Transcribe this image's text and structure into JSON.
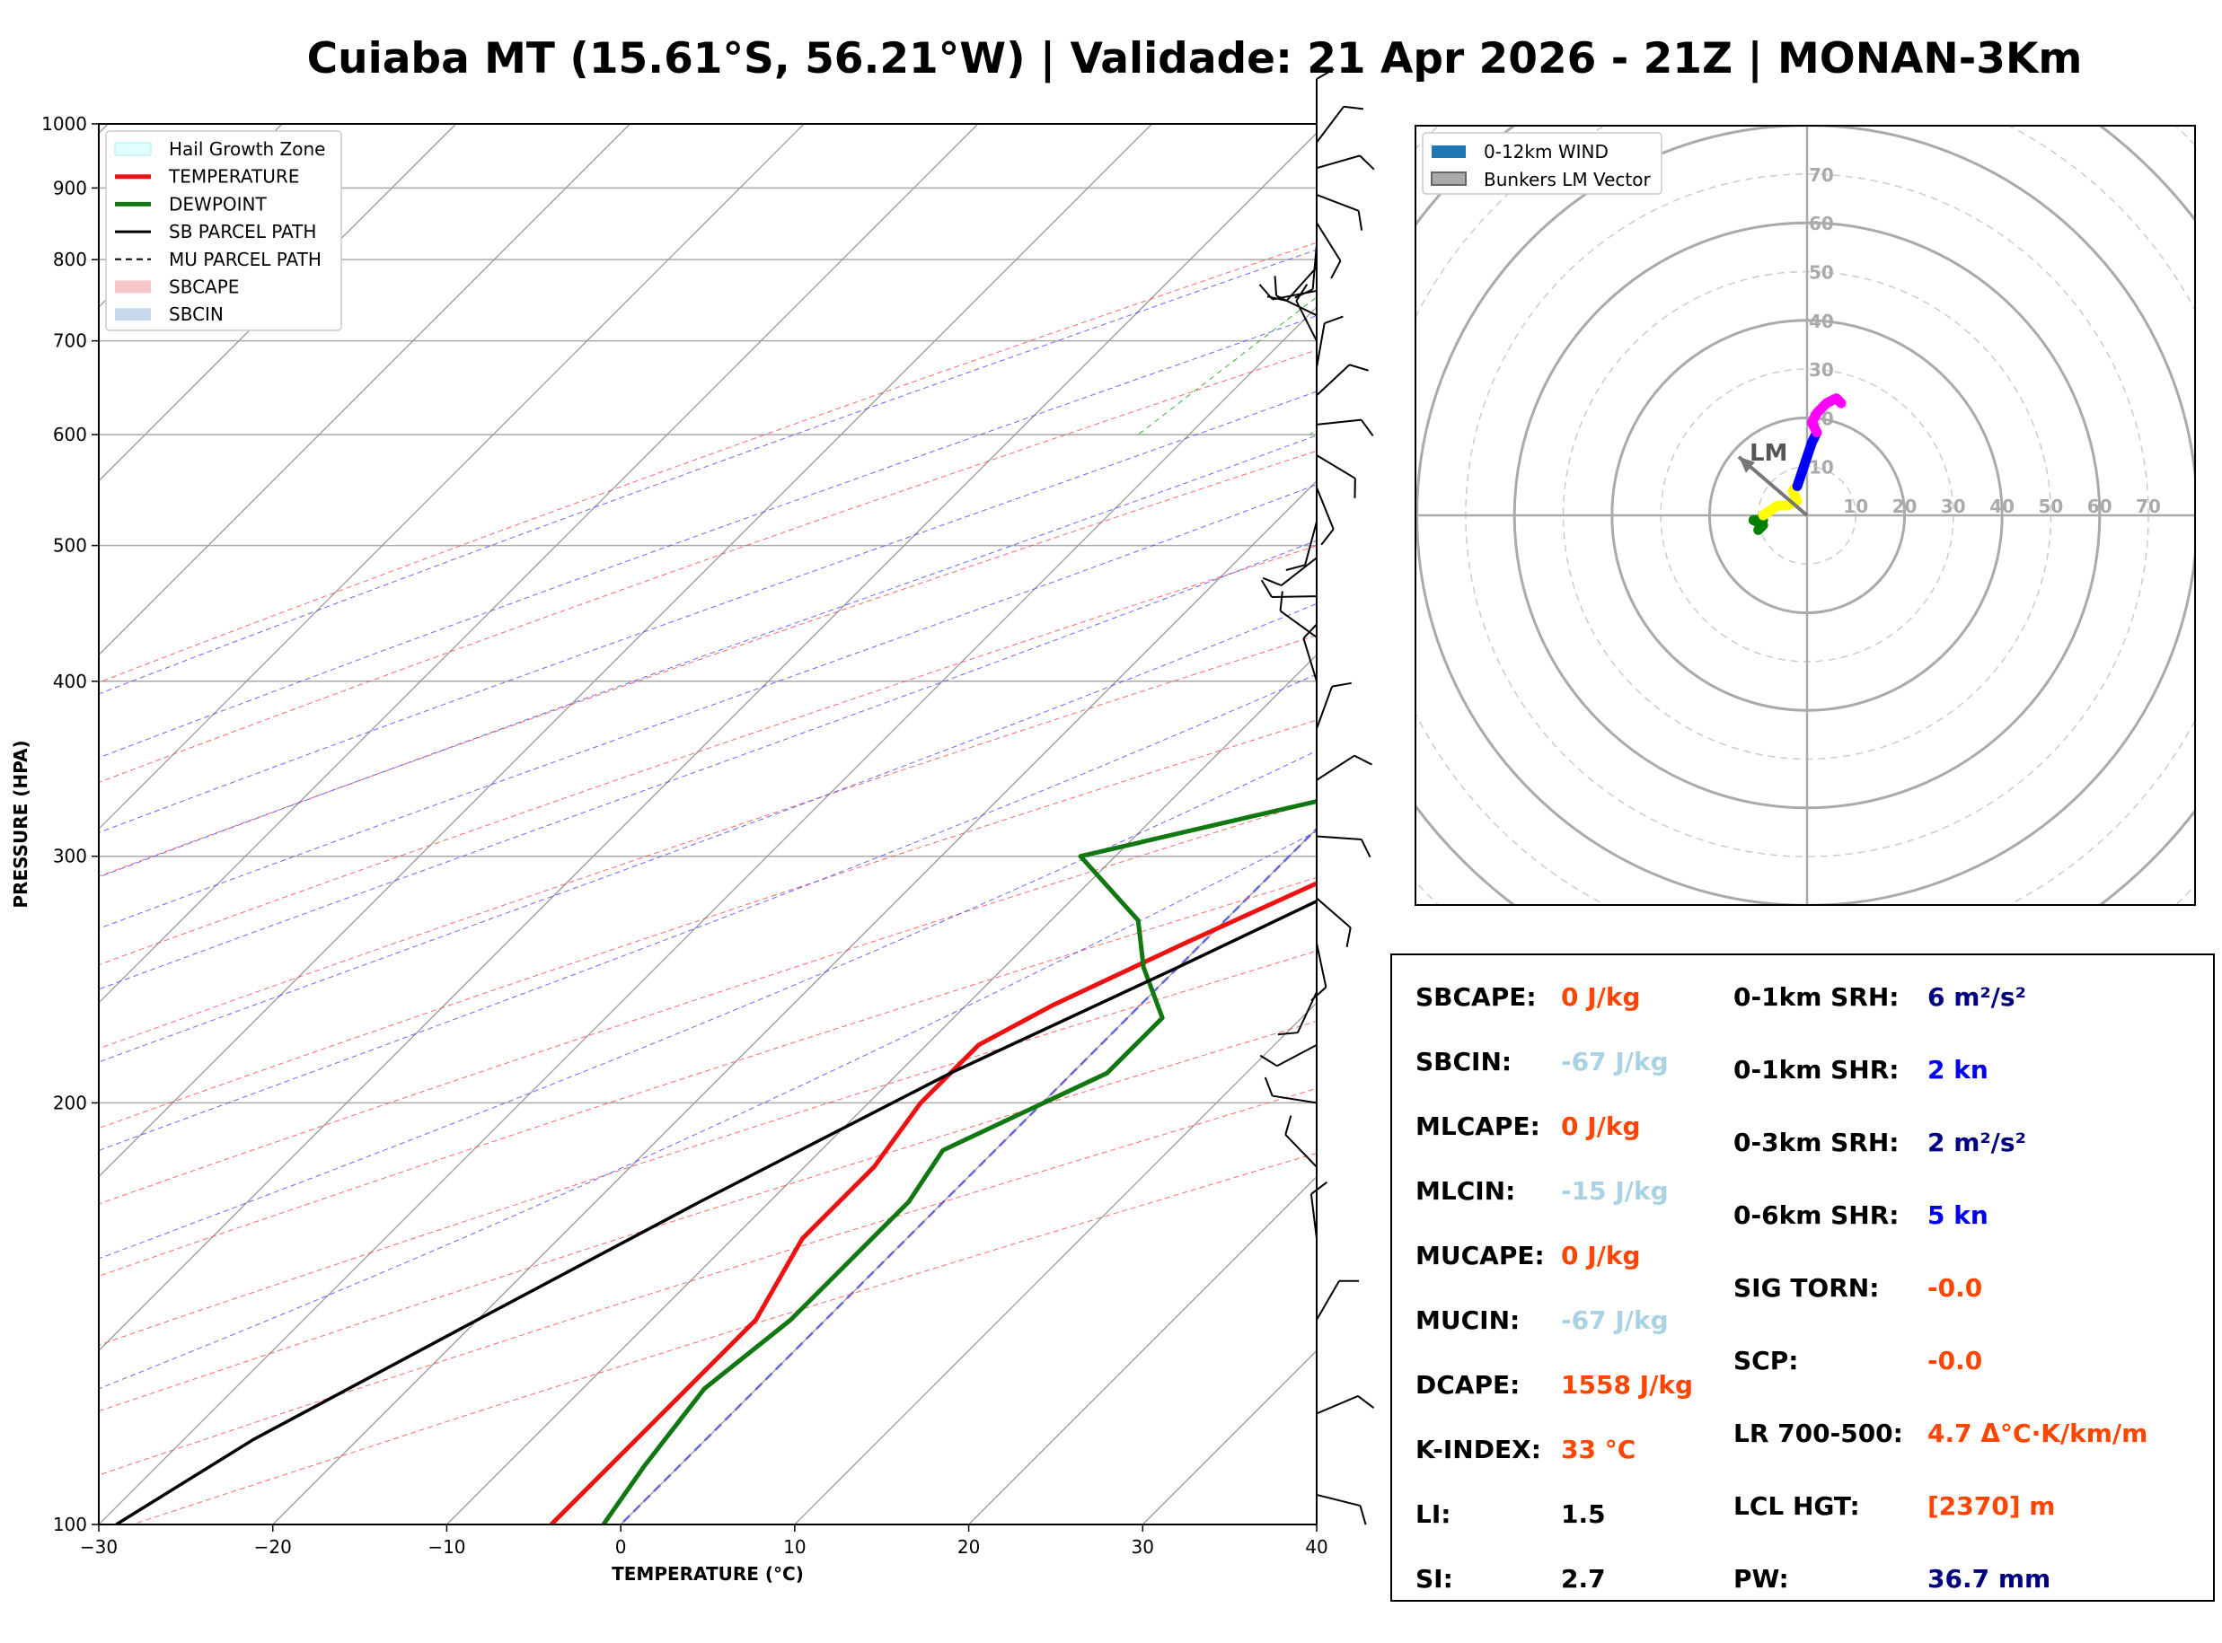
{
  "title": "Cuiaba MT (15.61°S, 56.21°W) | Validade: 21 Apr 2026 - 21Z | MONAN-3Km",
  "colors": {
    "temperature": "#ee1111",
    "dewpoint": "#117711",
    "parcel": "#000000",
    "hail_zone": "#e0ffff",
    "dry_adiabat": "#ff4444",
    "moist_adiabat": "#4444ff",
    "mixing_ratio": "#22aa22",
    "isotherm": "#999999",
    "orange_value": "#ff4500",
    "light_blue_value": "#a9d3e4",
    "navy_value": "#000080",
    "blue_value": "#0000ee"
  },
  "chart_data": [
    {
      "type": "line",
      "subtype": "skew-T log-P sounding",
      "xlabel": "TEMPERATURE (°C)",
      "ylabel": "PRESSURE (HPA)",
      "xlim": [
        -30,
        40
      ],
      "ylim": [
        1000,
        100
      ],
      "yscale": "log",
      "grid": true,
      "x_ticks": [
        "−30",
        "−20",
        "−10",
        "0",
        "10",
        "20",
        "30",
        "40"
      ],
      "x_tick_values": [
        -30,
        -20,
        -10,
        0,
        10,
        20,
        30,
        40
      ],
      "y_ticks": [
        "100",
        "200",
        "300",
        "400",
        "500",
        "600",
        "700",
        "800",
        "900",
        "1000"
      ],
      "y_tick_values": [
        100,
        200,
        300,
        400,
        500,
        600,
        700,
        800,
        900,
        1000
      ],
      "legend_position": "top-left",
      "legend": [
        "Hail Growth Zone",
        "TEMPERATURE",
        "DEWPOINT",
        "SB PARCEL PATH",
        "MU PARCEL PATH",
        "SBCAPE",
        "SBCIN"
      ],
      "series": [
        {
          "name": "TEMPERATURE",
          "points": [
            [
              35.2,
              1000
            ],
            [
              30,
              900
            ],
            [
              27,
              850
            ],
            [
              22.5,
              770
            ],
            [
              21.5,
              735
            ],
            [
              22.5,
              700
            ],
            [
              22,
              660
            ],
            [
              21.5,
              600
            ],
            [
              21,
              560
            ],
            [
              21,
              540
            ],
            [
              20,
              500
            ],
            [
              18,
              460
            ],
            [
              15,
              420
            ],
            [
              12,
              380
            ],
            [
              9,
              340
            ],
            [
              5,
              300
            ],
            [
              -1,
              260
            ],
            [
              -5,
              235
            ],
            [
              -7,
              220
            ],
            [
              -7,
              200
            ],
            [
              -6,
              180
            ],
            [
              -6,
              160
            ],
            [
              -4,
              140
            ],
            [
              -4,
              120
            ],
            [
              -4,
              100
            ]
          ]
        },
        {
          "name": "DEWPOINT",
          "points": [
            [
              16.5,
              1000
            ],
            [
              17.5,
              950
            ],
            [
              17.5,
              900
            ],
            [
              17,
              870
            ],
            [
              17,
              840
            ],
            [
              18,
              820
            ],
            [
              17,
              790
            ],
            [
              19.5,
              760
            ],
            [
              16.5,
              740
            ],
            [
              17.5,
              710
            ],
            [
              16,
              690
            ],
            [
              5,
              650
            ],
            [
              2,
              620
            ],
            [
              1,
              580
            ],
            [
              -11,
              545
            ],
            [
              -7,
              500
            ],
            [
              -5,
              470
            ],
            [
              -3,
              420
            ],
            [
              6,
              385
            ],
            [
              5,
              360
            ],
            [
              -1,
              330
            ],
            [
              -12,
              300
            ],
            [
              -5,
              270
            ],
            [
              -2,
              250
            ],
            [
              2,
              230
            ],
            [
              2,
              210
            ],
            [
              -3,
              185
            ],
            [
              -2,
              170
            ],
            [
              -2,
              155
            ],
            [
              -2,
              140
            ],
            [
              -3,
              125
            ],
            [
              -2,
              110
            ],
            [
              -1,
              100
            ]
          ]
        },
        {
          "name": "SB PARCEL PATH",
          "points": [
            [
              35.2,
              1000
            ],
            [
              28,
              870
            ],
            [
              22,
              760
            ],
            [
              21.5,
              700
            ],
            [
              21.5,
              640
            ],
            [
              21,
              580
            ],
            [
              20,
              520
            ],
            [
              18.5,
              470
            ],
            [
              16,
              410
            ],
            [
              12,
              360
            ],
            [
              7,
              300
            ],
            [
              0,
              250
            ],
            [
              -7,
              210
            ],
            [
              -14,
              170
            ],
            [
              -20,
              140
            ],
            [
              -26,
              115
            ],
            [
              -29,
              100
            ]
          ]
        }
      ],
      "wind_barbs": "profile along right edge, light winds 5-15 kn"
    },
    {
      "type": "scatter",
      "subtype": "hodograph",
      "legend_position": "top-left",
      "legend": [
        "0-12km WIND",
        "Bunkers LM Vector"
      ],
      "ring_labels": [
        "10",
        "20",
        "30",
        "40",
        "50",
        "60",
        "70"
      ],
      "annotation": "LM",
      "series": [
        {
          "name": "0-12km WIND",
          "segments": [
            {
              "color": "#008000",
              "points": [
                [
                  -10,
                  -3
                ],
                [
                  -9,
                  -2
                ],
                [
                  -11,
                  -1
                ],
                [
                  -9,
                  -1
                ]
              ]
            },
            {
              "color": "#ffff00",
              "points": [
                [
                  -9,
                  0
                ],
                [
                  -6,
                  2
                ],
                [
                  -4,
                  2
                ],
                [
                  -2,
                  3
                ],
                [
                  -3,
                  5
                ],
                [
                  -2,
                  6
                ]
              ]
            },
            {
              "color": "#0000ff",
              "points": [
                [
                  -2,
                  6
                ],
                [
                  -1,
                  9
                ],
                [
                  0,
                  12
                ],
                [
                  1,
                  15
                ],
                [
                  2,
                  17
                ]
              ]
            },
            {
              "color": "#ff00ff",
              "points": [
                [
                  2,
                  17
                ],
                [
                  1,
                  19
                ],
                [
                  2,
                  21
                ],
                [
                  4,
                  23
                ],
                [
                  6,
                  24
                ],
                [
                  7,
                  23
                ]
              ]
            }
          ]
        },
        {
          "name": "Bunkers LM Vector",
          "points": [
            [
              0,
              0
            ],
            [
              -14,
              12
            ]
          ]
        }
      ]
    }
  ],
  "indices": {
    "left": [
      {
        "label": "SBCAPE:",
        "value": "0 J/kg",
        "color": "orange"
      },
      {
        "label": "SBCIN:",
        "value": "-67 J/kg",
        "color": "lightblue"
      },
      {
        "label": "MLCAPE:",
        "value": "0 J/kg",
        "color": "orange"
      },
      {
        "label": "MLCIN:",
        "value": "-15 J/kg",
        "color": "lightblue"
      },
      {
        "label": "MUCAPE:",
        "value": "0 J/kg",
        "color": "orange"
      },
      {
        "label": "MUCIN:",
        "value": "-67 J/kg",
        "color": "lightblue"
      },
      {
        "label": "DCAPE:",
        "value": "1558 J/kg",
        "color": "orange"
      },
      {
        "label": "K-INDEX:",
        "value": "33 °C",
        "color": "orange"
      },
      {
        "label": "LI:",
        "value": "1.5",
        "color": "black"
      },
      {
        "label": "SI:",
        "value": "2.7",
        "color": "black"
      }
    ],
    "right": [
      {
        "label": "0-1km SRH:",
        "value": "6 m²/s²",
        "color": "navy"
      },
      {
        "label": "0-1km SHR:",
        "value": "2 kn",
        "color": "blue"
      },
      {
        "label": "0-3km SRH:",
        "value": "2 m²/s²",
        "color": "navy"
      },
      {
        "label": "0-6km SHR:",
        "value": "5 kn",
        "color": "blue"
      },
      {
        "label": "SIG TORN:",
        "value": "-0.0",
        "color": "orange"
      },
      {
        "label": "SCP:",
        "value": "-0.0",
        "color": "orange"
      },
      {
        "label": "LR 700-500:",
        "value": "4.7 Δ°C·K/km/m",
        "color": "orange"
      },
      {
        "label": "LCL HGT:",
        "value": "[2370] m",
        "color": "orange"
      },
      {
        "label": "PW:",
        "value": "36.7 mm",
        "color": "navy"
      }
    ]
  }
}
